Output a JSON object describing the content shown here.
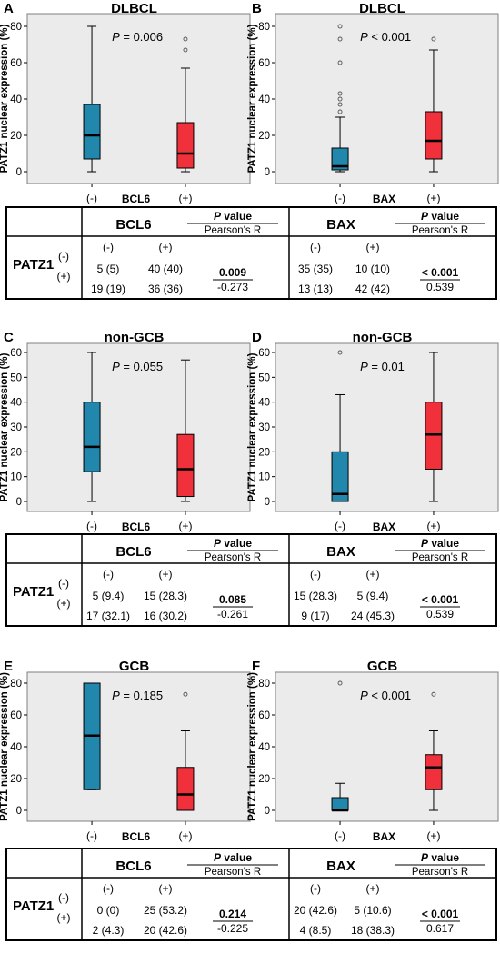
{
  "colors": {
    "negative_box": "#2187ad",
    "positive_box": "#f0313b",
    "panel_bg": "#ebebeb",
    "panel_border": "#7f7f7f"
  },
  "chart_data": [
    {
      "type": "box",
      "panel": "A",
      "title": "DLBCL",
      "ylabel": "PATZ1 nuclear expression (%)",
      "xlabel": "BCL6",
      "categories": [
        "(-)",
        "(+)"
      ],
      "ylim": [
        -4,
        86
      ],
      "yticks": [
        0,
        20,
        40,
        60,
        80
      ],
      "pvalue": "P = 0.006",
      "boxes": [
        {
          "category": "(-)",
          "min": 0,
          "q1": 7,
          "median": 20,
          "q3": 37,
          "max": 80,
          "outliers": []
        },
        {
          "category": "(+)",
          "min": 0,
          "q1": 2,
          "median": 10,
          "q3": 27,
          "max": 57,
          "outliers": [
            67,
            73
          ]
        }
      ]
    },
    {
      "type": "box",
      "panel": "B",
      "title": "DLBCL",
      "ylabel": "PATZ1 nuclear expression (%)",
      "xlabel": "BAX",
      "categories": [
        "(-)",
        "(+)"
      ],
      "ylim": [
        -4,
        86
      ],
      "yticks": [
        0,
        20,
        40,
        60,
        80
      ],
      "pvalue": "P < 0.001",
      "boxes": [
        {
          "category": "(-)",
          "min": 0,
          "q1": 1,
          "median": 3,
          "q3": 13,
          "max": 30,
          "outliers": [
            33,
            37,
            40,
            43,
            60,
            73,
            80
          ]
        },
        {
          "category": "(+)",
          "min": 0,
          "q1": 7,
          "median": 17,
          "q3": 33,
          "max": 67,
          "outliers": [
            73
          ]
        }
      ]
    },
    {
      "type": "box",
      "panel": "C",
      "title": "non-GCB",
      "ylabel": "PATZ1 nuclear expression (%)",
      "xlabel": "BCL6",
      "categories": [
        "(-)",
        "(+)"
      ],
      "ylim": [
        -3,
        64
      ],
      "yticks": [
        0,
        10,
        20,
        30,
        40,
        50,
        60
      ],
      "pvalue": "P = 0.055",
      "boxes": [
        {
          "category": "(-)",
          "min": 0,
          "q1": 12,
          "median": 22,
          "q3": 40,
          "max": 60,
          "outliers": []
        },
        {
          "category": "(+)",
          "min": 0,
          "q1": 2,
          "median": 13,
          "q3": 27,
          "max": 57,
          "outliers": []
        }
      ]
    },
    {
      "type": "box",
      "panel": "D",
      "title": "non-GCB",
      "ylabel": "PATZ1 nuclear expression (%)",
      "xlabel": "BAX",
      "categories": [
        "(-)",
        "(+)"
      ],
      "ylim": [
        -3,
        64
      ],
      "yticks": [
        0,
        10,
        20,
        30,
        40,
        50,
        60
      ],
      "pvalue": "P = 0.01",
      "boxes": [
        {
          "category": "(-)",
          "min": 0,
          "q1": 0,
          "median": 3,
          "q3": 20,
          "max": 43,
          "outliers": [
            60
          ]
        },
        {
          "category": "(+)",
          "min": 0,
          "q1": 13,
          "median": 27,
          "q3": 40,
          "max": 60,
          "outliers": []
        }
      ]
    },
    {
      "type": "box",
      "panel": "E",
      "title": "GCB",
      "ylabel": "PATZ1 nuclear expression (%)",
      "xlabel": "BCL6",
      "categories": [
        "(-)",
        "(+)"
      ],
      "ylim": [
        -4,
        86
      ],
      "yticks": [
        0,
        20,
        40,
        60,
        80
      ],
      "pvalue": "P = 0.185",
      "boxes": [
        {
          "category": "(-)",
          "min": 13,
          "q1": 13,
          "median": 47,
          "q3": 80,
          "max": 80,
          "outliers": []
        },
        {
          "category": "(+)",
          "min": 0,
          "q1": 0,
          "median": 10,
          "q3": 27,
          "max": 50,
          "outliers": [
            73
          ]
        }
      ]
    },
    {
      "type": "box",
      "panel": "F",
      "title": "GCB",
      "ylabel": "PATZ1 nuclear expression (%)",
      "xlabel": "BAX",
      "categories": [
        "(-)",
        "(+)"
      ],
      "ylim": [
        -4,
        86
      ],
      "yticks": [
        0,
        20,
        40,
        60,
        80
      ],
      "pvalue": "P < 0.001",
      "boxes": [
        {
          "category": "(-)",
          "min": 0,
          "q1": 0,
          "median": 0,
          "q3": 8,
          "max": 17,
          "outliers": [
            80
          ]
        },
        {
          "category": "(+)",
          "min": 0,
          "q1": 13,
          "median": 27,
          "q3": 35,
          "max": 50,
          "outliers": [
            73
          ]
        }
      ]
    }
  ],
  "tables": [
    {
      "row_label": "PATZ1",
      "row_signs": [
        "(-)",
        "(+)"
      ],
      "col_signs": [
        "(-)",
        "(+)"
      ],
      "groups": [
        {
          "name": "BCL6",
          "cells": [
            [
              "5 (5)",
              "40 (40)"
            ],
            [
              "19 (19)",
              "36 (36)"
            ]
          ],
          "pvalue": "0.009",
          "pearson": "-0.273"
        },
        {
          "name": "BAX",
          "cells": [
            [
              "35 (35)",
              "10 (10)"
            ],
            [
              "13 (13)",
              "42 (42)"
            ]
          ],
          "pvalue": "< 0.001",
          "pearson": "0.539"
        }
      ]
    },
    {
      "row_label": "PATZ1",
      "row_signs": [
        "(-)",
        "(+)"
      ],
      "col_signs": [
        "(-)",
        "(+)"
      ],
      "groups": [
        {
          "name": "BCL6",
          "cells": [
            [
              "5 (9.4)",
              "15 (28.3)"
            ],
            [
              "17 (32.1)",
              "16 (30.2)"
            ]
          ],
          "pvalue": "0.085",
          "pearson": "-0.261"
        },
        {
          "name": "BAX",
          "cells": [
            [
              "15 (28.3)",
              "5 (9.4)"
            ],
            [
              "9 (17)",
              "24 (45.3)"
            ]
          ],
          "pvalue": "< 0.001",
          "pearson": "0.539"
        }
      ]
    },
    {
      "row_label": "PATZ1",
      "row_signs": [
        "(-)",
        "(+)"
      ],
      "col_signs": [
        "(-)",
        "(+)"
      ],
      "groups": [
        {
          "name": "BCL6",
          "cells": [
            [
              "0 (0)",
              "25 (53.2)"
            ],
            [
              "2 (4.3)",
              "20 (42.6)"
            ]
          ],
          "pvalue": "0.214",
          "pearson": "-0.225"
        },
        {
          "name": "BAX",
          "cells": [
            [
              "20 (42.6)",
              "5 (10.6)"
            ],
            [
              "4 (8.5)",
              "18 (38.3)"
            ]
          ],
          "pvalue": "< 0.001",
          "pearson": "0.617"
        }
      ]
    }
  ],
  "table_header": {
    "p_label": "P",
    "p_suffix": " value",
    "pearson_label": "Pearson's R"
  }
}
